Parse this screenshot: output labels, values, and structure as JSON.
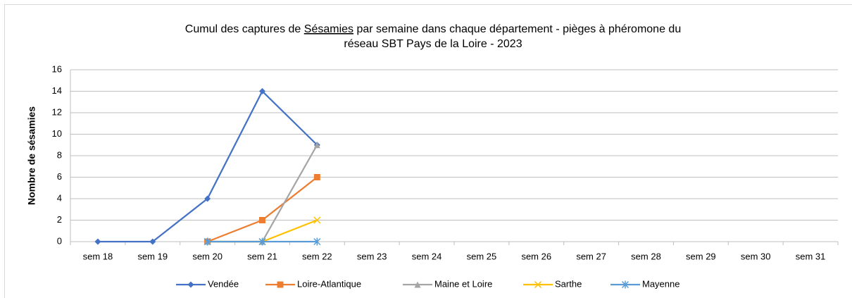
{
  "chart_data": {
    "type": "line",
    "title": {
      "line1": [
        "Cumul des captures de ",
        "Sésamies",
        " par semaine dans chaque département - pièges à phéromone du"
      ],
      "line2": "réseau SBT Pays de la Loire - 2023"
    },
    "y_label": "Nombre de sésamies",
    "categories": [
      "sem 18",
      "sem 19",
      "sem 20",
      "sem 21",
      "sem 22",
      "sem 23",
      "sem 24",
      "sem 25",
      "sem 26",
      "sem 27",
      "sem 28",
      "sem 29",
      "sem 30",
      "sem 31"
    ],
    "series": [
      {
        "name": "Vendée",
        "color": "#4472c4",
        "marker": "diamond",
        "values": [
          0,
          0,
          4,
          14,
          9,
          null,
          null,
          null,
          null,
          null,
          null,
          null,
          null,
          null
        ]
      },
      {
        "name": "Loire-Atlantique",
        "color": "#ed7d31",
        "marker": "square",
        "values": [
          null,
          null,
          0,
          2,
          6,
          null,
          null,
          null,
          null,
          null,
          null,
          null,
          null,
          null
        ]
      },
      {
        "name": "Maine et Loire",
        "color": "#a5a5a5",
        "marker": "triangle",
        "values": [
          null,
          null,
          0,
          0,
          9,
          null,
          null,
          null,
          null,
          null,
          null,
          null,
          null,
          null
        ]
      },
      {
        "name": "Sarthe",
        "color": "#ffc000",
        "marker": "x",
        "values": [
          null,
          null,
          0,
          0,
          2,
          null,
          null,
          null,
          null,
          null,
          null,
          null,
          null,
          null
        ]
      },
      {
        "name": "Mayenne",
        "color": "#5b9bd5",
        "marker": "star",
        "values": [
          null,
          null,
          0,
          0,
          0,
          null,
          null,
          null,
          null,
          null,
          null,
          null,
          null,
          null
        ]
      }
    ],
    "ylim": [
      0,
      16
    ],
    "yticks": [
      0,
      2,
      4,
      6,
      8,
      10,
      12,
      14,
      16
    ],
    "grid": true,
    "legend": "bottom"
  }
}
